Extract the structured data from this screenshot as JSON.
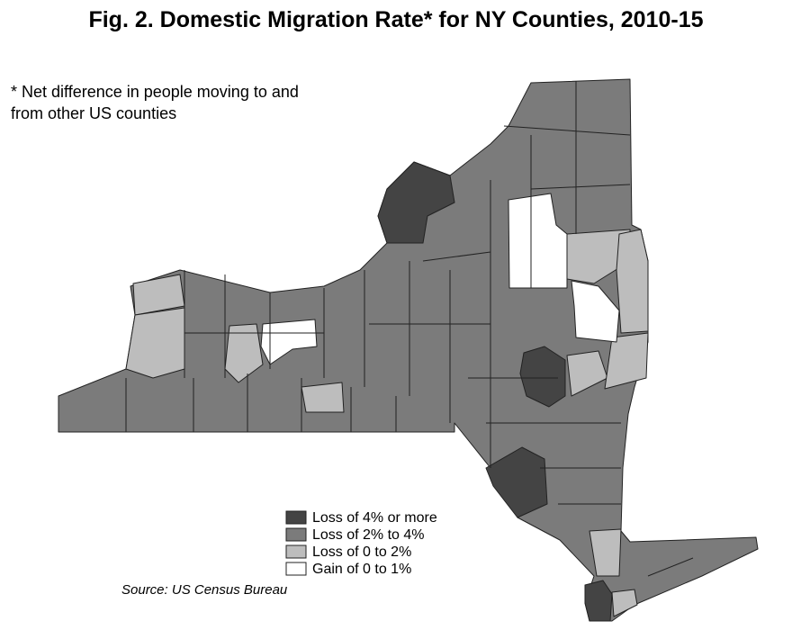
{
  "title": "Fig. 2. Domestic Migration Rate* for NY Counties, 2010-15",
  "note": [
    "* Net difference in people moving to and",
    "from other US counties"
  ],
  "legend": [
    {
      "label": "Loss of 4% or more",
      "color": "#444444"
    },
    {
      "label": "Loss of 2% to 4%",
      "color": "#7b7b7b"
    },
    {
      "label": "Loss of 0 to 2%",
      "color": "#bdbdbd"
    },
    {
      "label": "Gain of 0 to 1%",
      "color": "#ffffff"
    }
  ],
  "source": "Source: US Census Bureau"
}
